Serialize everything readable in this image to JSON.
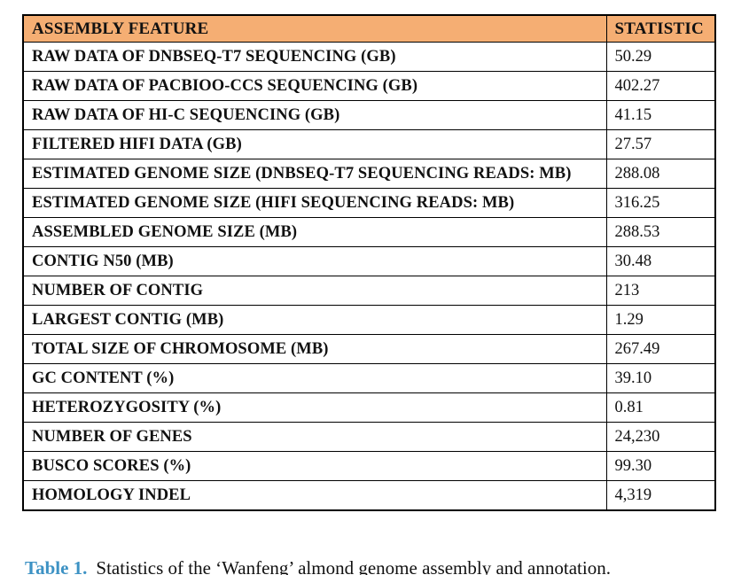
{
  "table": {
    "headers": {
      "feature": "ASSEMBLY FEATURE",
      "statistic": "STATISTIC"
    },
    "rows": [
      {
        "feature": "RAW DATA OF DNBSEQ-T7 SEQUENCING (GB)",
        "statistic": "50.29"
      },
      {
        "feature": "RAW DATA OF PACBIOO-CCS SEQUENCING (GB)",
        "statistic": "402.27"
      },
      {
        "feature": "RAW DATA OF HI-C SEQUENCING (GB)",
        "statistic": "41.15"
      },
      {
        "feature": "FILTERED HIFI DATA (GB)",
        "statistic": "27.57"
      },
      {
        "feature": "ESTIMATED GENOME SIZE (DNBSEQ-T7 SEQUENCING READS: MB)",
        "statistic": "288.08"
      },
      {
        "feature": "ESTIMATED GENOME SIZE (HIFI SEQUENCING READS: MB)",
        "statistic": "316.25"
      },
      {
        "feature": "ASSEMBLED GENOME SIZE (MB)",
        "statistic": "288.53"
      },
      {
        "feature": "CONTIG N50 (MB)",
        "statistic": "30.48"
      },
      {
        "feature": "NUMBER OF CONTIG",
        "statistic": "213"
      },
      {
        "feature": "LARGEST CONTIG (MB)",
        "statistic": "1.29"
      },
      {
        "feature": "TOTAL SIZE OF CHROMOSOME (MB)",
        "statistic": "267.49"
      },
      {
        "feature": "GC CONTENT (%)",
        "statistic": "39.10"
      },
      {
        "feature": "HETEROZYGOSITY (%)",
        "statistic": "0.81"
      },
      {
        "feature": "NUMBER OF GENES",
        "statistic": "24,230"
      },
      {
        "feature": "BUSCO SCORES (%)",
        "statistic": "99.30"
      },
      {
        "feature": "HOMOLOGY INDEL",
        "statistic": "4,319"
      }
    ]
  },
  "caption": {
    "label": "Table 1.",
    "text": "Statistics of the ‘Wanfeng’ almond genome assembly and annotation."
  },
  "colors": {
    "header_background": "#F5AE73",
    "caption_label": "#3D92C4",
    "border": "#000000",
    "text": "#111111"
  }
}
